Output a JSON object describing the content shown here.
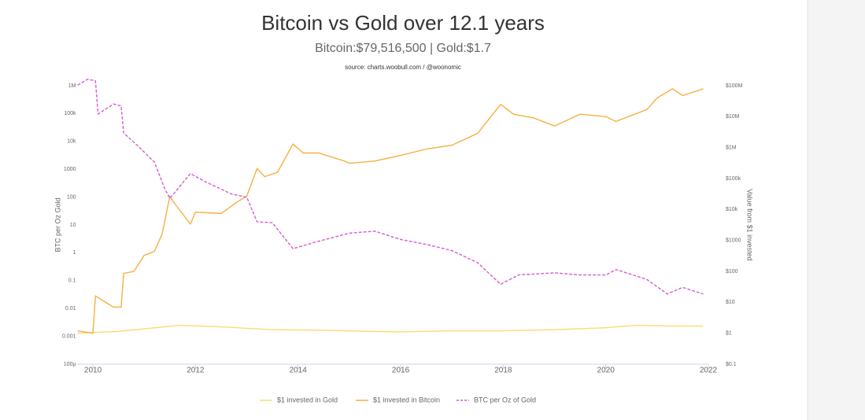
{
  "chart_data": {
    "type": "line",
    "title": "Bitcoin vs Gold over 12.1 years",
    "subtitle": "Bitcoin:$79,516,500 | Gold:$1.7",
    "source": "source: charts.woobull.com / @woonomic",
    "ylabel": "BTC per Oz Gold",
    "y2label": "Value from $1 invested",
    "log": true,
    "legend": "bottom",
    "xlim": [
      2009.7,
      2022
    ],
    "xticks": [
      2010,
      2012,
      2014,
      2016,
      2018,
      2020,
      2022
    ],
    "ylim": [
      0.0001,
      1000000
    ],
    "yticks": [
      {
        "value": 0.0001,
        "label": "100µ"
      },
      0.001,
      0.01,
      0.1,
      1,
      10,
      100,
      1000,
      {
        "value": 10000,
        "label": "10k"
      },
      {
        "value": 100000,
        "label": "100k"
      },
      {
        "value": 1000000,
        "label": "1M"
      }
    ],
    "y2lim": [
      0.1,
      100000000
    ],
    "y2ticks": [
      {
        "value": 0.1,
        "label": "$0.1"
      },
      {
        "value": 1,
        "label": "$1"
      },
      {
        "value": 10,
        "label": "$10"
      },
      {
        "value": 100,
        "label": "$100"
      },
      {
        "value": 1000,
        "label": "$1000"
      },
      {
        "value": 10000,
        "label": "$10k"
      },
      {
        "value": 100000,
        "label": "$100k"
      },
      {
        "value": 1000000,
        "label": "$1M"
      },
      {
        "value": 10000000,
        "label": "$10M"
      },
      {
        "value": 100000000,
        "label": "$100M"
      }
    ],
    "series": [
      {
        "name": "$1 invested in Gold",
        "color": "#f7dc6f",
        "axis": "y2",
        "dash": false,
        "x": [
          2009.7,
          2010.5,
          2011.7,
          2012.5,
          2013.5,
          2014.5,
          2015.9,
          2017,
          2018,
          2019,
          2020,
          2020.6,
          2021.3,
          2021.9
        ],
        "values": [
          1,
          1.15,
          1.8,
          1.6,
          1.3,
          1.25,
          1.1,
          1.2,
          1.2,
          1.3,
          1.5,
          1.8,
          1.7,
          1.7
        ]
      },
      {
        "name": "$1 invested in Bitcoin",
        "color": "#f5b041",
        "axis": "y2",
        "dash": false,
        "x": [
          2009.7,
          2010,
          2010.05,
          2010.4,
          2010.55,
          2010.6,
          2010.8,
          2011,
          2011.2,
          2011.35,
          2011.5,
          2011.6,
          2011.9,
          2012,
          2012.5,
          2012.8,
          2013,
          2013.2,
          2013.35,
          2013.6,
          2013.9,
          2014.1,
          2014.4,
          2014.9,
          2015,
          2015.5,
          2016,
          2016.5,
          2017,
          2017.5,
          2017.95,
          2018.2,
          2018.6,
          2019,
          2019.5,
          2020,
          2020.2,
          2020.8,
          2021,
          2021.3,
          2021.5,
          2021.8,
          2021.9
        ],
        "values": [
          1.2,
          1,
          16,
          7,
          7,
          86,
          100,
          330,
          440,
          1600,
          27000,
          15000,
          3400,
          8200,
          7400,
          17000,
          27000,
          210000,
          115000,
          160000,
          1300000,
          670000,
          670000,
          370000,
          310000,
          370000,
          560000,
          900000,
          1200000,
          2900000,
          25000000,
          12000000,
          9000000,
          5000000,
          12000000,
          10000000,
          7000000,
          17000000,
          40000000,
          80000000,
          48000000,
          70000000,
          80000000
        ]
      },
      {
        "name": "BTC per Oz of Gold",
        "color": "#d35fd3",
        "axis": "y",
        "dash": true,
        "x": [
          2009.7,
          2009.9,
          2010.05,
          2010.1,
          2010.4,
          2010.55,
          2010.6,
          2010.9,
          2011.2,
          2011.4,
          2011.5,
          2011.9,
          2012.2,
          2012.7,
          2013,
          2013.2,
          2013.5,
          2013.9,
          2014.4,
          2015,
          2015.5,
          2016,
          2016.5,
          2017,
          2017.5,
          2017.95,
          2018.3,
          2019,
          2019.5,
          2020,
          2020.2,
          2020.8,
          2021.2,
          2021.5,
          2021.9
        ],
        "values": [
          1050000,
          1700000,
          1500000,
          97000,
          220000,
          190000,
          20000,
          6300,
          1800,
          200,
          90,
          700,
          350,
          130,
          100,
          13,
          12,
          1.4,
          2.6,
          5.1,
          6,
          3,
          2,
          1.2,
          0.44,
          0.074,
          0.16,
          0.19,
          0.16,
          0.16,
          0.25,
          0.11,
          0.033,
          0.057,
          0.033
        ]
      }
    ]
  }
}
